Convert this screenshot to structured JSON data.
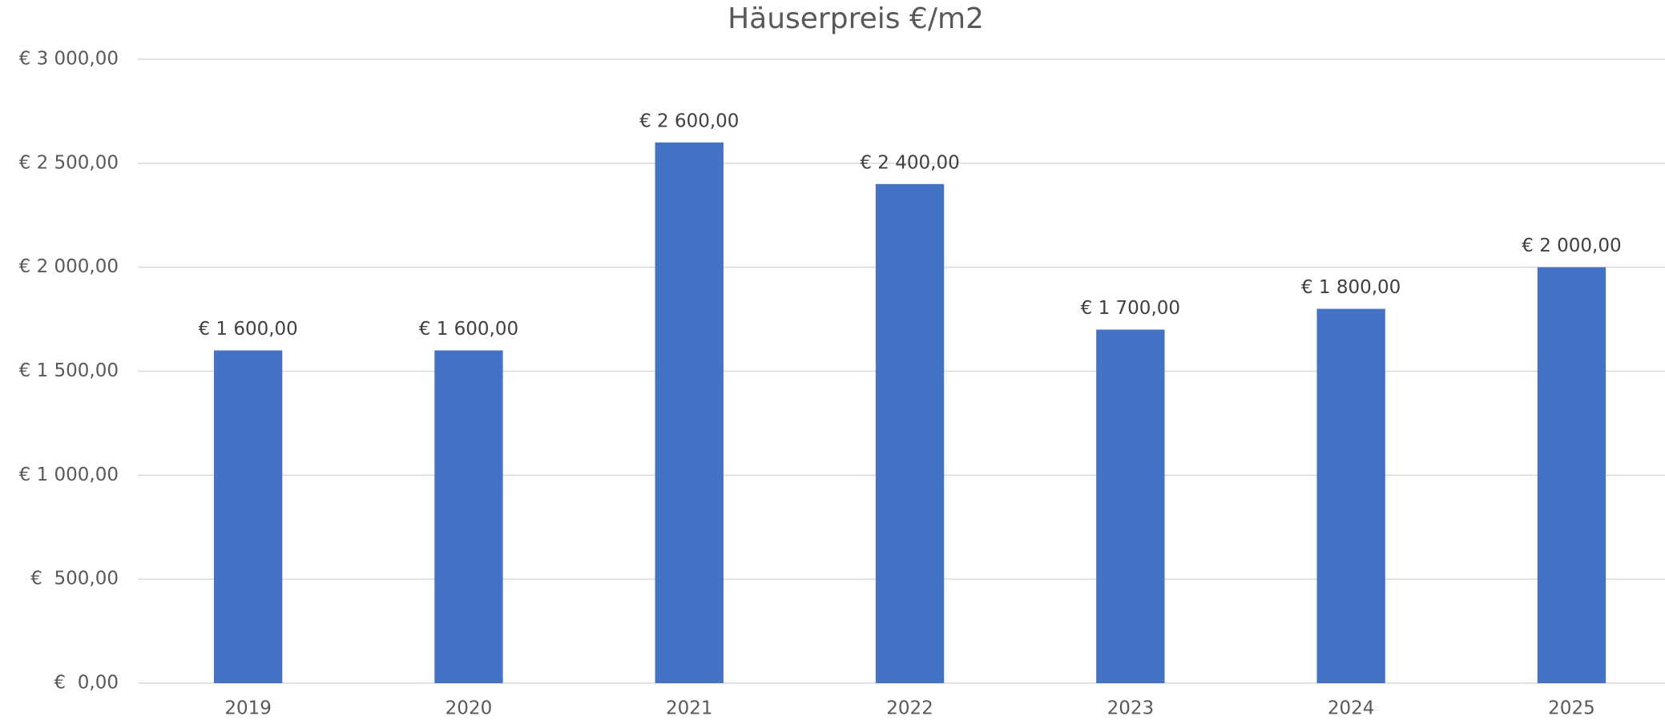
{
  "chart_data": {
    "type": "bar",
    "title": "Häuserpreis €/m2",
    "categories": [
      "2019",
      "2020",
      "2021",
      "2022",
      "2023",
      "2024",
      "2025"
    ],
    "values": [
      1600,
      1600,
      2600,
      2400,
      1700,
      1800,
      2000
    ],
    "value_labels": [
      "€ 1 600,00",
      "€ 1 600,00",
      "€ 2 600,00",
      "€ 2 400,00",
      "€ 1 700,00",
      "€ 1 800,00",
      "€ 2 000,00"
    ],
    "color": "#4472c4",
    "ylim": [
      0,
      3000
    ],
    "yticks": [
      {
        "value": 0,
        "label": "€  0,00"
      },
      {
        "value": 500,
        "label": "€  500,00"
      },
      {
        "value": 1000,
        "label": "€ 1 000,00"
      },
      {
        "value": 1500,
        "label": "€ 1 500,00"
      },
      {
        "value": 2000,
        "label": "€ 2 000,00"
      },
      {
        "value": 2500,
        "label": "€ 2 500,00"
      },
      {
        "value": 3000,
        "label": "€ 3 000,00"
      }
    ],
    "grid": true
  }
}
